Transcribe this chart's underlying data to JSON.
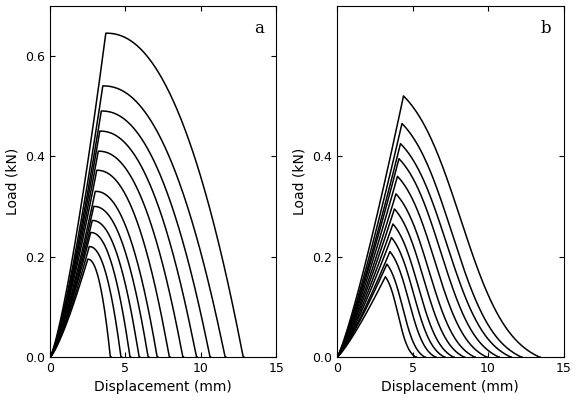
{
  "panel_a": {
    "label": "a",
    "num_curves": 12,
    "peak_loads": [
      0.195,
      0.22,
      0.248,
      0.272,
      0.3,
      0.33,
      0.372,
      0.41,
      0.45,
      0.49,
      0.54,
      0.645
    ],
    "peak_disp": [
      2.5,
      2.6,
      2.7,
      2.8,
      2.9,
      3.0,
      3.1,
      3.2,
      3.3,
      3.4,
      3.5,
      3.7
    ],
    "end_disp": [
      4.0,
      4.7,
      5.3,
      5.9,
      6.5,
      7.1,
      7.9,
      8.8,
      9.7,
      10.6,
      11.6,
      12.8
    ]
  },
  "panel_b": {
    "label": "b",
    "num_curves": 12,
    "peak_loads": [
      0.16,
      0.185,
      0.21,
      0.238,
      0.265,
      0.295,
      0.325,
      0.36,
      0.395,
      0.425,
      0.465,
      0.52
    ],
    "peak_disp": [
      3.2,
      3.3,
      3.5,
      3.6,
      3.7,
      3.8,
      3.9,
      4.0,
      4.1,
      4.2,
      4.3,
      4.4
    ],
    "end_disp": [
      5.2,
      5.8,
      6.5,
      7.1,
      7.7,
      8.4,
      9.1,
      9.9,
      10.7,
      11.5,
      12.2,
      13.4
    ]
  },
  "xlim": [
    0,
    15
  ],
  "ylim": [
    0,
    0.7
  ],
  "yticks_a": [
    0,
    0.2,
    0.4,
    0.6
  ],
  "yticks_b": [
    0,
    0.2,
    0.4
  ],
  "xticks": [
    0,
    5,
    10,
    15
  ],
  "xlabel": "Displacement (mm)",
  "ylabel": "Load (kN)",
  "linewidth": 1.1,
  "linecolor": "black",
  "background": "white"
}
